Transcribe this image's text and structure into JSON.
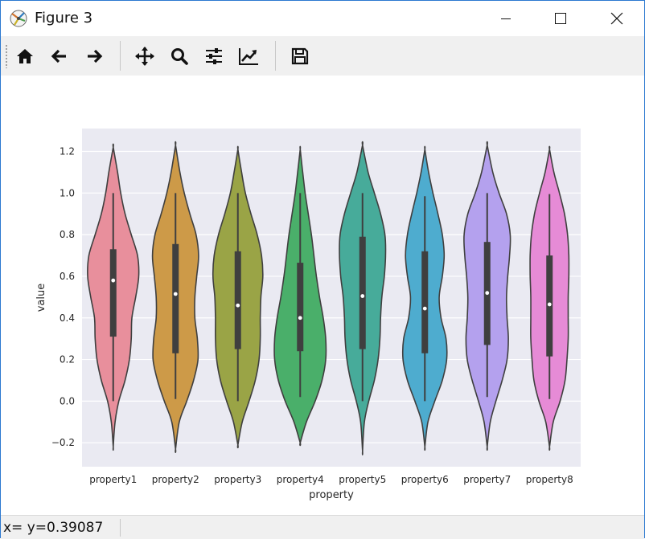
{
  "window": {
    "title": "Figure 3",
    "controls": {
      "minimize": "minimize",
      "maximize": "maximize",
      "close": "close"
    }
  },
  "toolbar": {
    "tools": [
      {
        "name": "home-button",
        "icon": "home-icon",
        "tooltip": "Home"
      },
      {
        "name": "back-button",
        "icon": "arrow-left-icon",
        "tooltip": "Back"
      },
      {
        "name": "forward-button",
        "icon": "arrow-right-icon",
        "tooltip": "Forward"
      },
      {
        "name": "pan-button",
        "icon": "move-icon",
        "tooltip": "Pan"
      },
      {
        "name": "zoom-button",
        "icon": "magnifier-icon",
        "tooltip": "Zoom"
      },
      {
        "name": "subplots-button",
        "icon": "sliders-icon",
        "tooltip": "Subplots"
      },
      {
        "name": "axes-button",
        "icon": "line-chart-icon",
        "tooltip": "Customize"
      },
      {
        "name": "save-button",
        "icon": "floppy-disk-icon",
        "tooltip": "Save"
      }
    ]
  },
  "status": {
    "text": "x= y=0.39087"
  },
  "chart_data": {
    "type": "violin",
    "categories": [
      "property1",
      "property2",
      "property3",
      "property4",
      "property5",
      "property6",
      "property7",
      "property8"
    ],
    "xlabel": "property",
    "ylabel": "value",
    "ylim": [
      -0.315,
      1.31
    ],
    "yticks": [
      -0.2,
      0.0,
      0.2,
      0.4,
      0.6,
      0.8,
      1.0,
      1.2
    ],
    "ytick_labels": [
      "−0.2",
      "0.0",
      "0.2",
      "0.4",
      "0.6",
      "0.8",
      "1.0",
      "1.2"
    ],
    "grid": true,
    "background": "#eaeaf2",
    "colors": [
      "#e88f9c",
      "#cd9a48",
      "#9aa446",
      "#4aaf6a",
      "#47ab9a",
      "#4eaccf",
      "#b4a1ee",
      "#e68bd6"
    ],
    "series": [
      {
        "category": "property1",
        "min": 0.0,
        "q1": 0.31,
        "median": 0.58,
        "q3": 0.73,
        "max": 1.0,
        "kde_y": [
          -0.22,
          -0.1,
          0.0,
          0.1,
          0.2,
          0.3,
          0.4,
          0.5,
          0.6,
          0.7,
          0.8,
          0.9,
          1.0,
          1.1,
          1.22
        ],
        "kde_w": [
          0.0,
          0.06,
          0.18,
          0.38,
          0.52,
          0.58,
          0.6,
          0.72,
          0.82,
          0.78,
          0.58,
          0.38,
          0.24,
          0.14,
          0.0
        ]
      },
      {
        "category": "property2",
        "min": 0.01,
        "q1": 0.23,
        "median": 0.515,
        "q3": 0.755,
        "max": 1.0,
        "kde_y": [
          -0.23,
          -0.1,
          0.0,
          0.1,
          0.2,
          0.3,
          0.4,
          0.5,
          0.6,
          0.7,
          0.8,
          0.9,
          1.0,
          1.1,
          1.23
        ],
        "kde_w": [
          0.0,
          0.12,
          0.36,
          0.58,
          0.72,
          0.7,
          0.62,
          0.62,
          0.68,
          0.74,
          0.66,
          0.46,
          0.28,
          0.14,
          0.0
        ]
      },
      {
        "category": "property3",
        "min": 0.0,
        "q1": 0.25,
        "median": 0.46,
        "q3": 0.72,
        "max": 1.0,
        "kde_y": [
          -0.21,
          -0.1,
          0.0,
          0.1,
          0.2,
          0.3,
          0.4,
          0.5,
          0.6,
          0.7,
          0.8,
          0.9,
          1.0,
          1.1,
          1.21
        ],
        "kde_w": [
          0.0,
          0.14,
          0.36,
          0.56,
          0.68,
          0.72,
          0.72,
          0.74,
          0.8,
          0.76,
          0.62,
          0.42,
          0.24,
          0.12,
          0.0
        ]
      },
      {
        "category": "property4",
        "min": 0.02,
        "q1": 0.24,
        "median": 0.4,
        "q3": 0.665,
        "max": 1.0,
        "kde_y": [
          -0.2,
          -0.1,
          0.0,
          0.1,
          0.2,
          0.3,
          0.4,
          0.5,
          0.6,
          0.7,
          0.8,
          0.9,
          1.0,
          1.1,
          1.21
        ],
        "kde_w": [
          0.0,
          0.2,
          0.48,
          0.7,
          0.82,
          0.82,
          0.74,
          0.62,
          0.52,
          0.44,
          0.36,
          0.26,
          0.16,
          0.08,
          0.0
        ]
      },
      {
        "category": "property5",
        "min": 0.0,
        "q1": 0.25,
        "median": 0.505,
        "q3": 0.79,
        "max": 1.0,
        "kde_y": [
          -0.24,
          -0.1,
          0.0,
          0.1,
          0.2,
          0.3,
          0.4,
          0.5,
          0.6,
          0.7,
          0.8,
          0.9,
          1.0,
          1.1,
          1.23
        ],
        "kde_w": [
          0.0,
          0.06,
          0.2,
          0.38,
          0.5,
          0.56,
          0.58,
          0.62,
          0.7,
          0.74,
          0.72,
          0.58,
          0.38,
          0.18,
          0.0
        ]
      },
      {
        "category": "property6",
        "min": 0.0,
        "q1": 0.23,
        "median": 0.445,
        "q3": 0.72,
        "max": 0.985,
        "kde_y": [
          -0.22,
          -0.1,
          0.0,
          0.1,
          0.2,
          0.3,
          0.4,
          0.5,
          0.6,
          0.7,
          0.8,
          0.9,
          1.0,
          1.1,
          1.21
        ],
        "kde_w": [
          0.0,
          0.1,
          0.32,
          0.56,
          0.7,
          0.68,
          0.52,
          0.46,
          0.56,
          0.62,
          0.56,
          0.42,
          0.26,
          0.12,
          0.0
        ]
      },
      {
        "category": "property7",
        "min": 0.02,
        "q1": 0.27,
        "median": 0.52,
        "q3": 0.765,
        "max": 1.0,
        "kde_y": [
          -0.22,
          -0.1,
          0.0,
          0.1,
          0.2,
          0.3,
          0.4,
          0.5,
          0.6,
          0.7,
          0.8,
          0.9,
          1.0,
          1.1,
          1.23
        ],
        "kde_w": [
          0.0,
          0.1,
          0.28,
          0.48,
          0.64,
          0.68,
          0.64,
          0.62,
          0.66,
          0.72,
          0.74,
          0.62,
          0.38,
          0.18,
          0.0
        ]
      },
      {
        "category": "property8",
        "min": 0.01,
        "q1": 0.215,
        "median": 0.465,
        "q3": 0.7,
        "max": 0.995,
        "kde_y": [
          -0.22,
          -0.1,
          0.0,
          0.1,
          0.2,
          0.3,
          0.4,
          0.5,
          0.6,
          0.7,
          0.8,
          0.9,
          1.0,
          1.1,
          1.21
        ],
        "kde_w": [
          0.0,
          0.12,
          0.34,
          0.5,
          0.56,
          0.6,
          0.6,
          0.6,
          0.62,
          0.62,
          0.58,
          0.48,
          0.32,
          0.14,
          0.0
        ]
      }
    ]
  }
}
